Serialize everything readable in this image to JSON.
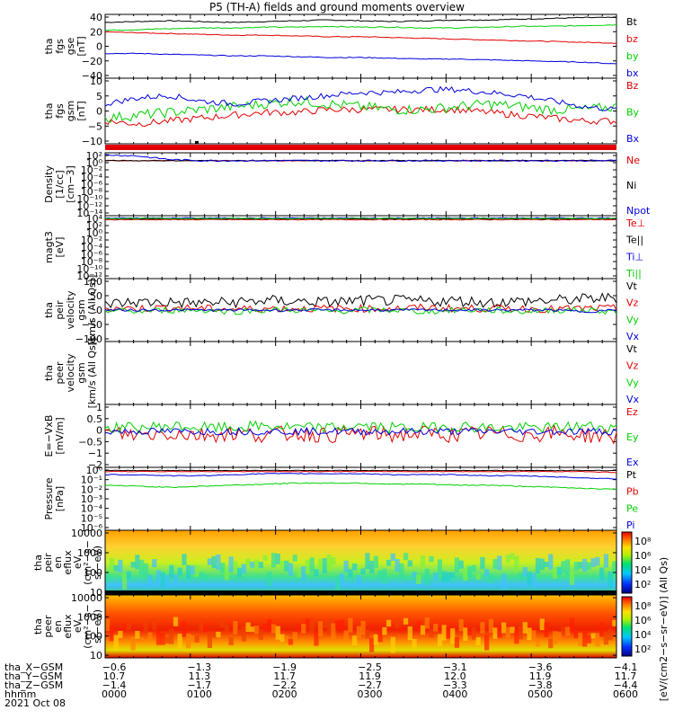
{
  "title": "P5 (TH-A) fields and ground moments overview",
  "colors": {
    "black": "#000000",
    "red": "#e00000",
    "green": "#00d000",
    "blue": "#0000dd"
  },
  "chart_data": [
    {
      "id": "fgs",
      "type": "line",
      "ylabel": [
        "tha",
        "fgs",
        "gse",
        "[nT]"
      ],
      "ylim": [
        -40,
        40
      ],
      "yticks": [
        "40",
        "20",
        "0",
        "−20",
        "−40"
      ],
      "series": [
        {
          "name": "Bt",
          "color": "black",
          "values": [
            30,
            31,
            32,
            31,
            30,
            31,
            32,
            33,
            32,
            31,
            32,
            33,
            33,
            34,
            35,
            36,
            36
          ]
        },
        {
          "name": "bz",
          "color": "red",
          "values": [
            18,
            17,
            16,
            15,
            14,
            14,
            13,
            12,
            12,
            11,
            10,
            9,
            8,
            7,
            6,
            5,
            4
          ]
        },
        {
          "name": "by",
          "color": "green",
          "values": [
            20,
            21,
            22,
            23,
            23,
            24,
            24,
            25,
            24,
            24,
            23,
            23,
            24,
            25,
            25,
            26,
            27
          ]
        },
        {
          "name": "bx",
          "color": "blue",
          "values": [
            -9,
            -9,
            -10,
            -11,
            -12,
            -12,
            -13,
            -14,
            -14,
            -15,
            -16,
            -16,
            -17,
            -18,
            -19,
            -20,
            -22
          ]
        }
      ]
    },
    {
      "id": "fgs_gsm",
      "type": "line",
      "ylabel": [
        "tha",
        "fgs",
        "gsm",
        "[nT]"
      ],
      "ylim": [
        -13,
        10
      ],
      "yticks": [
        "10",
        "5",
        "0",
        "−5",
        "−10"
      ],
      "series": [
        {
          "name": "Bz",
          "color": "red",
          "values": [
            -5,
            -6,
            -5,
            -4,
            -3,
            -2,
            -2,
            -1,
            -1,
            -1,
            -1,
            -1,
            -2,
            -3,
            -4,
            -5,
            -5
          ]
        },
        {
          "name": "By",
          "color": "green",
          "values": [
            -4,
            -3,
            -2,
            -1,
            0,
            1,
            2,
            1,
            0,
            -1,
            -1,
            0,
            1,
            0,
            -1,
            -1,
            0
          ]
        },
        {
          "name": "Bx",
          "color": "blue",
          "values": [
            1,
            3,
            4,
            2,
            1,
            2,
            3,
            4,
            5,
            5,
            6,
            6,
            5,
            4,
            2,
            0,
            -1
          ]
        }
      ]
    },
    {
      "id": "density",
      "type": "line",
      "ylabel": [
        "Density",
        "[1/cc]",
        "[cm−3]"
      ],
      "log": true,
      "ylim": [
        -14,
        2
      ],
      "yticks": [
        "10²",
        "10⁰",
        "10⁻²",
        "10⁻⁴",
        "10⁻⁶",
        "10⁻⁸",
        "10⁻¹⁰",
        "10⁻¹²",
        "10⁻¹⁴"
      ],
      "series": [
        {
          "name": "Ne",
          "color": "red",
          "values": [
            0,
            0,
            0,
            0,
            0,
            0,
            0,
            0,
            0,
            0,
            0,
            0,
            0,
            0,
            0,
            0,
            0
          ]
        },
        {
          "name": "Ni",
          "color": "black",
          "values": [
            0,
            0,
            0,
            0,
            0,
            0,
            0,
            0,
            0,
            0,
            0,
            0,
            0,
            0,
            0,
            0,
            0
          ]
        },
        {
          "name": "Npot",
          "color": "blue",
          "values": [
            1.5,
            1.2,
            0.3,
            0,
            0,
            0,
            0,
            0,
            0,
            0,
            0,
            0,
            0,
            0,
            0,
            0,
            0
          ]
        }
      ]
    },
    {
      "id": "temp",
      "type": "line",
      "ylabel": [
        "magt3",
        "[eV]"
      ],
      "log": true,
      "ylim": [
        -12,
        4
      ],
      "yticks": [
        "10⁴",
        "10²",
        "10⁰",
        "10⁻²",
        "10⁻⁴",
        "10⁻⁶",
        "10⁻⁸",
        "10⁻¹⁰",
        "10⁻¹²"
      ],
      "series": [
        {
          "name": "Te⊥",
          "color": "red",
          "values": [
            3,
            3,
            3,
            3,
            3,
            3,
            3,
            3,
            3,
            3,
            3,
            3,
            3,
            3,
            3,
            3,
            3
          ]
        },
        {
          "name": "Te||",
          "color": "black",
          "values": [
            3.2,
            3.2,
            3.2,
            3.2,
            3.2,
            3.2,
            3.2,
            3.2,
            3.2,
            3.2,
            3.2,
            3.2,
            3.2,
            3.2,
            3.2,
            3.2,
            3.2
          ]
        },
        {
          "name": "Ti⊥",
          "color": "blue",
          "values": [
            3.4,
            3.4,
            3.4,
            3.4,
            3.4,
            3.4,
            3.4,
            3.4,
            3.4,
            3.4,
            3.4,
            3.4,
            3.4,
            3.4,
            3.4,
            3.4,
            3.4
          ]
        },
        {
          "name": "Ti||",
          "color": "green",
          "values": [
            3.3,
            3.3,
            3.3,
            3.3,
            3.3,
            3.3,
            3.3,
            3.3,
            3.3,
            3.3,
            3.3,
            3.3,
            3.3,
            3.3,
            3.3,
            3.3,
            3.3
          ]
        }
      ]
    },
    {
      "id": "peir_vel",
      "type": "line",
      "ylabel": [
        "tha",
        "peir",
        "velocity",
        "gsm",
        "[km/s (All Qs)]"
      ],
      "ylim": [
        -100,
        100
      ],
      "yticks": [
        "100",
        "50",
        "0",
        "−50",
        "−100"
      ],
      "series": [
        {
          "name": "Vt",
          "color": "black",
          "values": [
            20,
            25,
            25,
            22,
            25,
            30,
            28,
            25,
            30,
            30,
            28,
            30,
            25,
            28,
            30,
            35,
            40
          ]
        },
        {
          "name": "Vz",
          "color": "red",
          "values": [
            5,
            5,
            8,
            5,
            3,
            5,
            5,
            5,
            5,
            5,
            8,
            5,
            5,
            5,
            3,
            5,
            5
          ]
        },
        {
          "name": "Vy",
          "color": "green",
          "values": [
            0,
            -5,
            0,
            0,
            -5,
            0,
            0,
            -5,
            0,
            0,
            -5,
            0,
            0,
            -5,
            0,
            0,
            -5
          ]
        },
        {
          "name": "Vx",
          "color": "blue",
          "values": [
            0,
            0,
            0,
            0,
            0,
            0,
            0,
            0,
            0,
            0,
            0,
            0,
            0,
            0,
            0,
            -5,
            0
          ]
        }
      ]
    },
    {
      "id": "peer_vel",
      "type": "line",
      "ylabel": [
        "tha",
        "peer",
        "velocity",
        "gsm",
        "[km/s (All Qs)]"
      ],
      "ylim": [
        -100,
        100
      ],
      "yticks": [],
      "series": [
        {
          "name": "Vt",
          "color": "black",
          "values": []
        },
        {
          "name": "Vz",
          "color": "red",
          "values": []
        },
        {
          "name": "Vy",
          "color": "green",
          "values": []
        },
        {
          "name": "Vx",
          "color": "blue",
          "values": []
        }
      ]
    },
    {
      "id": "efield",
      "type": "line",
      "ylabel": [
        "E=−VxB",
        "[mV/m]"
      ],
      "ylim": [
        -2,
        1.5
      ],
      "yticks": [
        "1",
        "0.5",
        "0",
        "−0.5",
        "−1",
        "−2"
      ],
      "series": [
        {
          "name": "Ez",
          "color": "red",
          "values": [
            -0.1,
            -0.2,
            -0.1,
            -0.2,
            -0.1,
            -0.2,
            -0.1,
            -0.2,
            -0.1,
            -0.2,
            -0.1,
            -0.2,
            -0.1,
            -0.2,
            -0.1,
            -0.2,
            -0.3
          ]
        },
        {
          "name": "Ey",
          "color": "green",
          "values": [
            0.2,
            0.2,
            0.3,
            0.2,
            0.2,
            0.3,
            0.2,
            0.2,
            0.3,
            0.2,
            0.2,
            0.3,
            0.2,
            0.2,
            0.2,
            0.3,
            0.2
          ]
        },
        {
          "name": "Ex",
          "color": "blue",
          "values": [
            0,
            0,
            0,
            0,
            0,
            0,
            0,
            0,
            0,
            0,
            0,
            0,
            0,
            0,
            0,
            0,
            0
          ]
        }
      ]
    },
    {
      "id": "pressure",
      "type": "line",
      "ylabel": [
        "Pressure",
        "[nPa]"
      ],
      "log": true,
      "ylim": [
        -6,
        0
      ],
      "yticks": [
        "10⁰",
        "10⁻¹",
        "10⁻²",
        "10⁻³",
        "10⁻⁴",
        "10⁻⁵",
        "10⁻⁶"
      ],
      "series": [
        {
          "name": "Pt",
          "color": "black",
          "values": [
            -0.3,
            -0.3,
            -0.3,
            -0.3,
            -0.3,
            -0.3,
            -0.3,
            -0.3,
            -0.3,
            -0.3,
            -0.3,
            -0.3,
            -0.3,
            -0.3,
            -0.3,
            -0.3,
            -0.3
          ]
        },
        {
          "name": "Pb",
          "color": "red",
          "values": [
            -0.4,
            -0.4,
            -0.4,
            -0.4,
            -0.4,
            -0.4,
            -0.4,
            -0.4,
            -0.4,
            -0.4,
            -0.4,
            -0.4,
            -0.4,
            -0.4,
            -0.4,
            -0.4,
            -0.5
          ]
        },
        {
          "name": "Pe",
          "color": "green",
          "values": [
            -1.7,
            -1.8,
            -1.9,
            -1.8,
            -1.7,
            -1.6,
            -1.5,
            -1.5,
            -1.5,
            -1.6,
            -1.6,
            -1.7,
            -1.7,
            -1.8,
            -1.9,
            -2.0,
            -2.1
          ]
        },
        {
          "name": "Pi",
          "color": "blue",
          "values": [
            -0.7,
            -0.7,
            -0.8,
            -0.8,
            -0.7,
            -0.6,
            -0.6,
            -0.6,
            -0.6,
            -0.7,
            -0.7,
            -0.7,
            -0.8,
            -0.8,
            -0.9,
            -1.0,
            -1.1
          ]
        }
      ]
    },
    {
      "id": "peir_spec",
      "type": "heatmap",
      "ylabel": [
        "tha",
        "peir",
        "en",
        "eflux",
        "eV",
        "(cm²−s−",
        "sr−eV)"
      ],
      "yticks": [
        "10000",
        "1000",
        "100",
        "10"
      ],
      "ylim": [
        5,
        30000
      ],
      "colorbar": {
        "label": "[eV/(cm2−s−sr−eV)] (All Qs)",
        "ticks": [
          "10⁸",
          "10⁶",
          "10⁴",
          "10²"
        ]
      }
    },
    {
      "id": "peer_spec",
      "type": "heatmap",
      "ylabel": [
        "tha",
        "peer",
        "en",
        "eflux",
        "eV",
        "(cm²−s−",
        "sr−eV)"
      ],
      "yticks": [
        "10000",
        "1000",
        "100",
        "10"
      ],
      "ylim": [
        5,
        30000
      ],
      "colorbar": {
        "label": "[eV/(cm2−s−sr−eV)]",
        "ticks": [
          "10⁸",
          "10⁶",
          "10⁴",
          "10²"
        ]
      }
    }
  ],
  "footer": {
    "rows": [
      {
        "label": "tha_X−GSM",
        "values": [
          "−0.6",
          "−1.3",
          "−1.9",
          "−2.5",
          "−3.1",
          "−3.6",
          "−4.1"
        ]
      },
      {
        "label": "tha_Y−GSM",
        "values": [
          "10.7",
          "11.3",
          "11.7",
          "11.9",
          "12.0",
          "11.9",
          "11.7"
        ]
      },
      {
        "label": "tha_Z−GSM",
        "values": [
          "−1.4",
          "−1.7",
          "−2.2",
          "−2.7",
          "−3.3",
          "−3.8",
          "−4.4"
        ]
      },
      {
        "label": "hhmm",
        "values": [
          "0000",
          "0100",
          "0200",
          "0300",
          "0400",
          "0500",
          "0600"
        ]
      }
    ],
    "date": "2021 Oct 08"
  }
}
